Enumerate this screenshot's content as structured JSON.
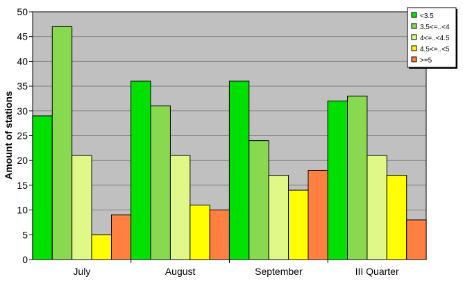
{
  "chart_data": {
    "type": "bar",
    "title": "",
    "xlabel": "",
    "ylabel": "Amount of stations",
    "ylim": [
      0,
      50
    ],
    "yticks": [
      0,
      5,
      10,
      15,
      20,
      25,
      30,
      35,
      40,
      45,
      50
    ],
    "categories": [
      "July",
      "August",
      "September",
      "III Quarter"
    ],
    "series": [
      {
        "name": "<3.5",
        "color": "#00e000",
        "values": [
          29,
          36,
          36,
          32
        ]
      },
      {
        "name": "3.5<=..<4",
        "color": "#88d850",
        "values": [
          47,
          31,
          24,
          33
        ]
      },
      {
        "name": "4<=..<4.5",
        "color": "#e0f888",
        "values": [
          21,
          21,
          17,
          21
        ]
      },
      {
        "name": "4.5<=..<5",
        "color": "#ffff00",
        "values": [
          5,
          11,
          14,
          17
        ]
      },
      {
        "name": ">=5",
        "color": "#ff8040",
        "values": [
          9,
          10,
          18,
          8
        ]
      }
    ],
    "grid": true,
    "plot_background": "#c0c0c0",
    "legend_position": "top-right"
  }
}
